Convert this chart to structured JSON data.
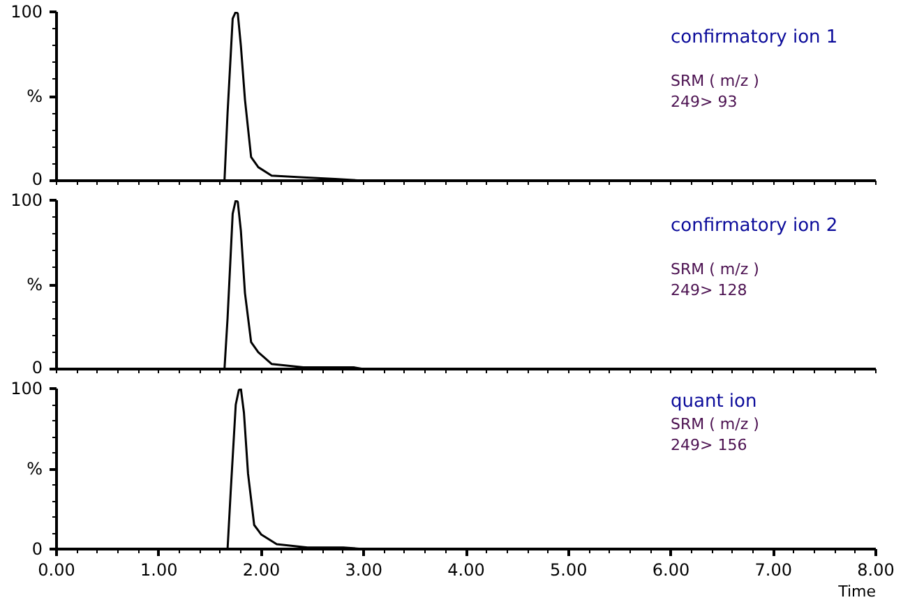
{
  "chart_data": [
    {
      "type": "line",
      "title": "confirmatory ion 1",
      "annotations": [
        "SRM ( m/z )",
        "249> 93"
      ],
      "tick_labels": "y",
      "xlim": [
        0,
        8
      ],
      "ylim": [
        0,
        100
      ],
      "xticks": [
        {
          "value": 0,
          "label": null
        },
        {
          "value": 0.2,
          "label": null
        },
        {
          "value": 0.4,
          "label": null
        },
        {
          "value": 0.6,
          "label": null
        },
        {
          "value": 0.8,
          "label": null
        },
        {
          "value": 1,
          "label": null
        },
        {
          "value": 1.2,
          "label": null
        },
        {
          "value": 1.4,
          "label": null
        },
        {
          "value": 1.6,
          "label": null
        },
        {
          "value": 1.8,
          "label": null
        },
        {
          "value": 2,
          "label": null
        },
        {
          "value": 2.2,
          "label": null
        },
        {
          "value": 2.4,
          "label": null
        },
        {
          "value": 2.6,
          "label": null
        },
        {
          "value": 2.8,
          "label": null
        },
        {
          "value": 3,
          "label": null
        },
        {
          "value": 3.2,
          "label": null
        },
        {
          "value": 3.4,
          "label": null
        },
        {
          "value": 3.6,
          "label": null
        },
        {
          "value": 3.8,
          "label": null
        },
        {
          "value": 4,
          "label": null
        },
        {
          "value": 4.2,
          "label": null
        },
        {
          "value": 4.4,
          "label": null
        },
        {
          "value": 4.6,
          "label": null
        },
        {
          "value": 4.8,
          "label": null
        },
        {
          "value": 5,
          "label": null
        },
        {
          "value": 5.2,
          "label": null
        },
        {
          "value": 5.4,
          "label": null
        },
        {
          "value": 5.6,
          "label": null
        },
        {
          "value": 5.8,
          "label": null
        },
        {
          "value": 6,
          "label": null
        },
        {
          "value": 6.2,
          "label": null
        },
        {
          "value": 6.4,
          "label": null
        },
        {
          "value": 6.6,
          "label": null
        },
        {
          "value": 6.8,
          "label": null
        },
        {
          "value": 7,
          "label": null
        },
        {
          "value": 7.2,
          "label": null
        },
        {
          "value": 7.4,
          "label": null
        },
        {
          "value": 7.6,
          "label": null
        },
        {
          "value": 7.8,
          "label": null
        },
        {
          "value": 8,
          "label": null
        }
      ],
      "yticks": [
        0,
        {
          "value": 10,
          "label": null
        },
        {
          "value": 20,
          "label": null
        },
        {
          "value": 30,
          "label": null
        },
        {
          "value": 40,
          "label": null
        },
        {
          "value": 50,
          "label": "%"
        },
        {
          "value": 60,
          "label": null
        },
        {
          "value": 70,
          "label": null
        },
        {
          "value": 80,
          "label": null
        },
        {
          "value": 90,
          "label": null
        },
        100
      ],
      "series": [
        {
          "color": "#000000",
          "x": [
            0,
            1.64,
            1.67,
            1.72,
            1.75,
            1.77,
            1.8,
            1.84,
            1.9,
            1.97,
            2.1,
            2.41,
            2.72,
            3.0,
            8
          ],
          "values": [
            0,
            0,
            40,
            96,
            100,
            99,
            80,
            48,
            14,
            8,
            3,
            2,
            1,
            0,
            0
          ]
        }
      ]
    },
    {
      "type": "line",
      "title": "confirmatory ion 2",
      "annotations": [
        "SRM ( m/z )",
        "249> 128"
      ],
      "tick_labels": "y",
      "xlim": [
        0,
        8
      ],
      "ylim": [
        0,
        100
      ],
      "xticks": [
        {
          "value": 0,
          "label": null
        },
        {
          "value": 0.2,
          "label": null
        },
        {
          "value": 0.4,
          "label": null
        },
        {
          "value": 0.6,
          "label": null
        },
        {
          "value": 0.8,
          "label": null
        },
        {
          "value": 1,
          "label": null
        },
        {
          "value": 1.2,
          "label": null
        },
        {
          "value": 1.4,
          "label": null
        },
        {
          "value": 1.6,
          "label": null
        },
        {
          "value": 1.8,
          "label": null
        },
        {
          "value": 2,
          "label": null
        },
        {
          "value": 2.2,
          "label": null
        },
        {
          "value": 2.4,
          "label": null
        },
        {
          "value": 2.6,
          "label": null
        },
        {
          "value": 2.8,
          "label": null
        },
        {
          "value": 3,
          "label": null
        },
        {
          "value": 3.2,
          "label": null
        },
        {
          "value": 3.4,
          "label": null
        },
        {
          "value": 3.6,
          "label": null
        },
        {
          "value": 3.8,
          "label": null
        },
        {
          "value": 4,
          "label": null
        },
        {
          "value": 4.2,
          "label": null
        },
        {
          "value": 4.4,
          "label": null
        },
        {
          "value": 4.6,
          "label": null
        },
        {
          "value": 4.8,
          "label": null
        },
        {
          "value": 5,
          "label": null
        },
        {
          "value": 5.2,
          "label": null
        },
        {
          "value": 5.4,
          "label": null
        },
        {
          "value": 5.6,
          "label": null
        },
        {
          "value": 5.8,
          "label": null
        },
        {
          "value": 6,
          "label": null
        },
        {
          "value": 6.2,
          "label": null
        },
        {
          "value": 6.4,
          "label": null
        },
        {
          "value": 6.6,
          "label": null
        },
        {
          "value": 6.8,
          "label": null
        },
        {
          "value": 7,
          "label": null
        },
        {
          "value": 7.2,
          "label": null
        },
        {
          "value": 7.4,
          "label": null
        },
        {
          "value": 7.6,
          "label": null
        },
        {
          "value": 7.8,
          "label": null
        },
        {
          "value": 8,
          "label": null
        }
      ],
      "yticks": [
        0,
        {
          "value": 10,
          "label": null
        },
        {
          "value": 20,
          "label": null
        },
        {
          "value": 30,
          "label": null
        },
        {
          "value": 40,
          "label": null
        },
        {
          "value": 50,
          "label": "%"
        },
        {
          "value": 60,
          "label": null
        },
        {
          "value": 70,
          "label": null
        },
        {
          "value": 80,
          "label": null
        },
        {
          "value": 90,
          "label": null
        },
        100
      ],
      "series": [
        {
          "color": "#000000",
          "x": [
            0,
            1.64,
            1.67,
            1.72,
            1.75,
            1.77,
            1.8,
            1.84,
            1.9,
            1.97,
            2.1,
            2.41,
            2.9,
            3.0,
            8
          ],
          "values": [
            0,
            0,
            30,
            92,
            100,
            99,
            82,
            45,
            16,
            10,
            3,
            1,
            1,
            0,
            0
          ]
        }
      ]
    },
    {
      "type": "line",
      "title": "quant ion",
      "annotations": [
        "SRM ( m/z )",
        "249> 156"
      ],
      "xlabel": "Time",
      "xlim": [
        0,
        8
      ],
      "ylim": [
        0,
        100
      ],
      "xticks": [
        {
          "value": 0,
          "label": "0.00"
        },
        {
          "value": 0.2,
          "label": null
        },
        {
          "value": 0.4,
          "label": null
        },
        {
          "value": 0.6,
          "label": null
        },
        {
          "value": 0.8,
          "label": null
        },
        {
          "value": 1,
          "label": "1.00"
        },
        {
          "value": 1.2,
          "label": null
        },
        {
          "value": 1.4,
          "label": null
        },
        {
          "value": 1.6,
          "label": null
        },
        {
          "value": 1.8,
          "label": null
        },
        {
          "value": 2,
          "label": "2.00"
        },
        {
          "value": 2.2,
          "label": null
        },
        {
          "value": 2.4,
          "label": null
        },
        {
          "value": 2.6,
          "label": null
        },
        {
          "value": 2.8,
          "label": null
        },
        {
          "value": 3,
          "label": "3.00"
        },
        {
          "value": 3.2,
          "label": null
        },
        {
          "value": 3.4,
          "label": null
        },
        {
          "value": 3.6,
          "label": null
        },
        {
          "value": 3.8,
          "label": null
        },
        {
          "value": 4,
          "label": "4.00"
        },
        {
          "value": 4.2,
          "label": null
        },
        {
          "value": 4.4,
          "label": null
        },
        {
          "value": 4.6,
          "label": null
        },
        {
          "value": 4.8,
          "label": null
        },
        {
          "value": 5,
          "label": "5.00"
        },
        {
          "value": 5.2,
          "label": null
        },
        {
          "value": 5.4,
          "label": null
        },
        {
          "value": 5.6,
          "label": null
        },
        {
          "value": 5.8,
          "label": null
        },
        {
          "value": 6,
          "label": "6.00"
        },
        {
          "value": 6.2,
          "label": null
        },
        {
          "value": 6.4,
          "label": null
        },
        {
          "value": 6.6,
          "label": null
        },
        {
          "value": 6.8,
          "label": null
        },
        {
          "value": 7,
          "label": "7.00"
        },
        {
          "value": 7.2,
          "label": null
        },
        {
          "value": 7.4,
          "label": null
        },
        {
          "value": 7.6,
          "label": null
        },
        {
          "value": 7.8,
          "label": null
        },
        {
          "value": 8,
          "label": "8.00"
        }
      ],
      "yticks": [
        0,
        {
          "value": 10,
          "label": null
        },
        {
          "value": 20,
          "label": null
        },
        {
          "value": 30,
          "label": null
        },
        {
          "value": 40,
          "label": null
        },
        {
          "value": 50,
          "label": "%"
        },
        {
          "value": 60,
          "label": null
        },
        {
          "value": 70,
          "label": null
        },
        {
          "value": 80,
          "label": null
        },
        {
          "value": 90,
          "label": null
        },
        100
      ],
      "series": [
        {
          "color": "#000000",
          "x": [
            0,
            1.67,
            1.7,
            1.75,
            1.78,
            1.8,
            1.83,
            1.87,
            1.93,
            2.0,
            2.15,
            2.45,
            2.8,
            3.0,
            8
          ],
          "values": [
            0,
            0,
            35,
            90,
            99,
            100,
            85,
            47,
            15,
            9,
            3,
            1,
            1,
            0,
            0
          ]
        }
      ]
    }
  ]
}
